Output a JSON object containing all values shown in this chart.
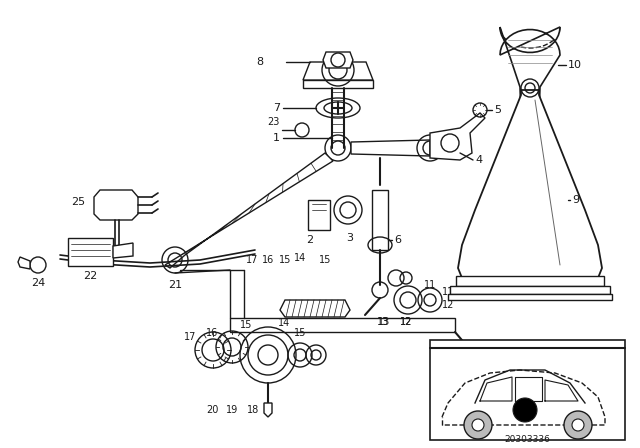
{
  "bg_color": "#ffffff",
  "line_color": "#1a1a1a",
  "fig_width": 6.4,
  "fig_height": 4.48,
  "dpi": 100,
  "diagram_code": "20303336"
}
